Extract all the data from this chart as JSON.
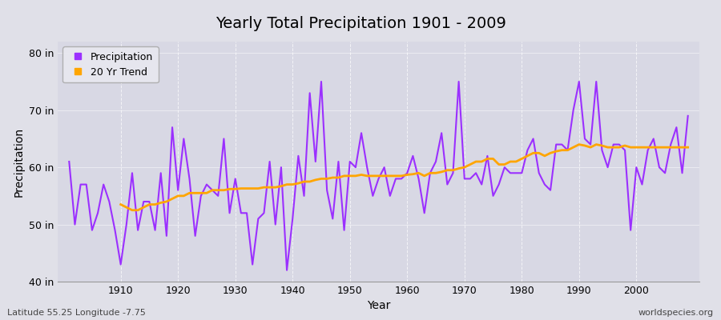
{
  "title": "Yearly Total Precipitation 1901 - 2009",
  "xlabel": "Year",
  "ylabel": "Precipitation",
  "footnote_left": "Latitude 55.25 Longitude -7.75",
  "footnote_right": "worldspecies.org",
  "ylim": [
    40,
    82
  ],
  "yticks": [
    40,
    50,
    60,
    70,
    80
  ],
  "ytick_labels": [
    "40 in",
    "50 in",
    "60 in",
    "70 in",
    "80 in"
  ],
  "xlim": [
    1899,
    2011
  ],
  "xticks": [
    1910,
    1920,
    1930,
    1940,
    1950,
    1960,
    1970,
    1980,
    1990,
    2000
  ],
  "years": [
    1901,
    1902,
    1903,
    1904,
    1905,
    1906,
    1907,
    1908,
    1909,
    1910,
    1911,
    1912,
    1913,
    1914,
    1915,
    1916,
    1917,
    1918,
    1919,
    1920,
    1921,
    1922,
    1923,
    1924,
    1925,
    1926,
    1927,
    1928,
    1929,
    1930,
    1931,
    1932,
    1933,
    1934,
    1935,
    1936,
    1937,
    1938,
    1939,
    1940,
    1941,
    1942,
    1943,
    1944,
    1945,
    1946,
    1947,
    1948,
    1949,
    1950,
    1951,
    1952,
    1953,
    1954,
    1955,
    1956,
    1957,
    1958,
    1959,
    1960,
    1961,
    1962,
    1963,
    1964,
    1965,
    1966,
    1967,
    1968,
    1969,
    1970,
    1971,
    1972,
    1973,
    1974,
    1975,
    1976,
    1977,
    1978,
    1979,
    1980,
    1981,
    1982,
    1983,
    1984,
    1985,
    1986,
    1987,
    1988,
    1989,
    1990,
    1991,
    1992,
    1993,
    1994,
    1995,
    1996,
    1997,
    1998,
    1999,
    2000,
    2001,
    2002,
    2003,
    2004,
    2005,
    2006,
    2007,
    2008,
    2009
  ],
  "precip": [
    61.0,
    50.0,
    57.0,
    57.0,
    49.0,
    52.0,
    57.0,
    54.0,
    49.0,
    43.0,
    50.0,
    59.0,
    49.0,
    54.0,
    54.0,
    49.0,
    59.0,
    48.0,
    67.0,
    56.0,
    65.0,
    58.0,
    48.0,
    55.0,
    57.0,
    56.0,
    55.0,
    65.0,
    52.0,
    58.0,
    52.0,
    52.0,
    43.0,
    51.0,
    52.0,
    61.0,
    50.0,
    60.0,
    42.0,
    51.0,
    62.0,
    55.0,
    73.0,
    61.0,
    75.0,
    56.0,
    51.0,
    61.0,
    49.0,
    61.0,
    60.0,
    66.0,
    60.0,
    55.0,
    58.0,
    60.0,
    55.0,
    58.0,
    58.0,
    59.0,
    62.0,
    58.0,
    52.0,
    59.0,
    61.0,
    66.0,
    57.0,
    59.0,
    75.0,
    58.0,
    58.0,
    59.0,
    57.0,
    62.0,
    55.0,
    57.0,
    60.0,
    59.0,
    59.0,
    59.0,
    63.0,
    65.0,
    59.0,
    57.0,
    56.0,
    64.0,
    64.0,
    63.0,
    70.0,
    75.0,
    65.0,
    64.0,
    75.0,
    63.0,
    60.0,
    64.0,
    64.0,
    63.0,
    49.0,
    60.0,
    57.0,
    63.0,
    65.0,
    60.0,
    59.0,
    64.0,
    67.0,
    59.0,
    69.0
  ],
  "trend": [
    null,
    null,
    null,
    null,
    null,
    null,
    null,
    null,
    null,
    53.5,
    53.0,
    52.5,
    52.5,
    53.0,
    53.5,
    53.5,
    53.8,
    54.0,
    54.5,
    55.0,
    55.0,
    55.5,
    55.5,
    55.5,
    55.5,
    56.0,
    56.0,
    56.0,
    56.2,
    56.2,
    56.3,
    56.3,
    56.3,
    56.3,
    56.5,
    56.5,
    56.5,
    56.7,
    57.0,
    57.0,
    57.2,
    57.5,
    57.5,
    57.8,
    58.0,
    58.0,
    58.2,
    58.2,
    58.5,
    58.5,
    58.5,
    58.7,
    58.5,
    58.5,
    58.5,
    58.5,
    58.5,
    58.5,
    58.5,
    58.7,
    58.8,
    59.0,
    58.5,
    59.0,
    59.0,
    59.2,
    59.5,
    59.5,
    59.8,
    60.0,
    60.5,
    61.0,
    61.0,
    61.5,
    61.5,
    60.5,
    60.5,
    61.0,
    61.0,
    61.5,
    62.0,
    62.5,
    62.5,
    62.0,
    62.5,
    62.8,
    63.0,
    63.0,
    63.5,
    64.0,
    63.8,
    63.5,
    64.0,
    63.8,
    63.5,
    63.5,
    63.5,
    63.8,
    63.5,
    63.5,
    63.5,
    63.5,
    63.5,
    63.5,
    63.5,
    63.5,
    63.5,
    63.5,
    63.5
  ],
  "precip_color": "#9b30ff",
  "trend_color": "#FFA500",
  "fig_bg_color": "#e0e0e8",
  "plot_bg_color": "#d8d8e4",
  "legend_bg": "#e8e8f0",
  "grid_color": "#c8c8d4",
  "title_fontsize": 14,
  "label_fontsize": 10,
  "tick_fontsize": 9,
  "footnote_fontsize": 8
}
